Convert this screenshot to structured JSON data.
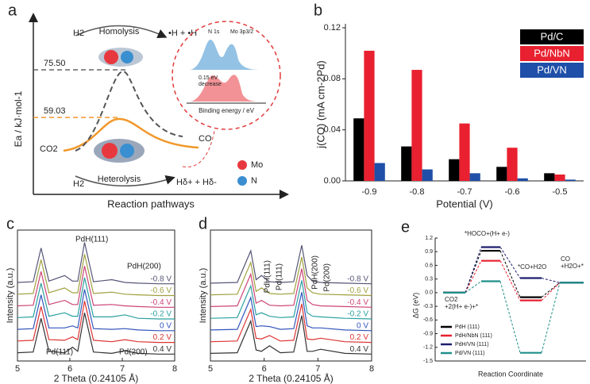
{
  "panel_labels": [
    "a",
    "b",
    "c",
    "d",
    "e"
  ],
  "diagram": {
    "y_label": "Ea / kJ·mol-1",
    "x_label": "Reaction pathways",
    "levels": [
      "75.50",
      "59.03"
    ],
    "homolysis": {
      "reactant": "H2",
      "label": "Homolysis",
      "product": "•H + •H"
    },
    "heterolysis": {
      "reactant": "H2",
      "label": "Heterolysis",
      "product": "Hδ+ + Hδ-"
    },
    "reactant": "CO2",
    "product": "CO",
    "inset": {
      "peaks": [
        "N 1s",
        "Mo 3p3/2"
      ],
      "shift": "0.15 eV",
      "shift_note": "decrease",
      "x_label": "Binding energy / eV"
    },
    "legend": [
      "Mo",
      "N"
    ]
  },
  "chart_data": [
    {
      "type": "bar",
      "x_label": "Potential (V)",
      "y_label": "j(CO)  (mA cm-2Pd)",
      "categories": [
        "-0.9",
        "-0.8",
        "-0.7",
        "-0.6",
        "-0.5"
      ],
      "series": [
        {
          "name": "Pd/C",
          "color": "#000000",
          "values": [
            0.049,
            0.027,
            0.017,
            0.011,
            0.006
          ]
        },
        {
          "name": "Pd/NbN",
          "color": "#e8202f",
          "values": [
            0.102,
            0.087,
            0.045,
            0.026,
            0.005
          ]
        },
        {
          "name": "Pd/VN",
          "color": "#1f4fa8",
          "values": [
            0.014,
            0.009,
            0.006,
            0.002,
            0.001
          ]
        }
      ],
      "ylim": [
        0,
        0.12
      ],
      "yticks": [
        {
          "value": 0,
          "label": "0.00"
        },
        0.04,
        0.08,
        0.12
      ],
      "legend": "upper right"
    },
    {
      "type": "line",
      "x_label": "2 Theta (0.24105 Å)",
      "y_label": "Intensity (a.u.)",
      "annotations": [
        "PdH(111)",
        "PdH(200)",
        "Pd(111)",
        "Pd(200)"
      ],
      "x": [
        5,
        5.3,
        5.45,
        5.6,
        5.9,
        6.05,
        6.15,
        6.28,
        6.45,
        6.8,
        7.05,
        7.3,
        7.7,
        8
      ],
      "series": [
        {
          "name": "0.4 V",
          "color": "#333333",
          "values": [
            0.6,
            0.65,
            3.1,
            0.7,
            0.6,
            1.0,
            0.7,
            3.5,
            0.65,
            0.55,
            0.75,
            0.55,
            0.5,
            0.5
          ]
        },
        {
          "name": "0.2 V",
          "color": "#dd3333",
          "values": [
            1.45,
            1.5,
            3.95,
            1.55,
            1.5,
            1.75,
            1.55,
            4.35,
            1.5,
            1.4,
            1.55,
            1.4,
            1.35,
            1.35
          ]
        },
        {
          "name": "0 V",
          "color": "#3355bb",
          "values": [
            2.3,
            2.35,
            4.8,
            2.4,
            2.4,
            2.55,
            2.4,
            5.2,
            2.35,
            2.3,
            2.35,
            2.25,
            2.2,
            2.2
          ]
        },
        {
          "name": "-0.2 V",
          "color": "#2aa0a0",
          "values": [
            3.15,
            3.2,
            5.65,
            3.25,
            3.5,
            3.25,
            3.25,
            6.05,
            3.2,
            3.2,
            3.35,
            3.1,
            3.05,
            3.05
          ]
        },
        {
          "name": "-0.4 V",
          "color": "#cc4477",
          "values": [
            4.0,
            4.05,
            6.5,
            4.1,
            4.4,
            4.1,
            4.1,
            6.9,
            4.05,
            4.1,
            4.0,
            3.95,
            3.9,
            3.9
          ]
        },
        {
          "name": "-0.6 V",
          "color": "#a0a040",
          "values": [
            4.85,
            4.9,
            7.35,
            4.95,
            5.3,
            4.95,
            4.95,
            7.75,
            4.9,
            5.0,
            4.85,
            4.8,
            4.75,
            4.75
          ]
        },
        {
          "name": "-0.8 V",
          "color": "#555577",
          "values": [
            5.7,
            5.75,
            8.2,
            5.8,
            6.2,
            5.8,
            5.8,
            8.6,
            5.75,
            5.9,
            5.7,
            5.65,
            5.6,
            5.6
          ]
        }
      ],
      "xlim": [
        5,
        8
      ],
      "xticks": [
        5,
        6,
        7,
        8
      ],
      "ylim": [
        0,
        9.5
      ]
    },
    {
      "type": "line",
      "x_label": "2 Theta (0.24105 Å)",
      "y_label": "Intensity (a.u.)",
      "annotations": [
        "PdH(111)",
        "Pd(111)",
        "PdH(200)",
        "Pd(200)"
      ],
      "x": [
        5,
        5.5,
        5.75,
        5.85,
        5.95,
        6.1,
        6.3,
        6.55,
        6.7,
        6.8,
        6.9,
        7.05,
        7.5,
        8
      ],
      "series": [
        {
          "name": "0.4 V",
          "color": "#333333",
          "values": [
            0.55,
            0.6,
            2.9,
            0.8,
            0.7,
            1.1,
            0.6,
            0.65,
            3.3,
            0.7,
            0.7,
            0.85,
            0.55,
            0.5
          ]
        },
        {
          "name": "0.2 V",
          "color": "#dd3333",
          "values": [
            1.4,
            1.45,
            3.75,
            1.65,
            1.6,
            1.85,
            1.45,
            1.5,
            4.15,
            1.6,
            1.55,
            1.65,
            1.4,
            1.35
          ]
        },
        {
          "name": "0 V",
          "color": "#3355bb",
          "values": [
            2.25,
            2.3,
            4.6,
            2.5,
            2.55,
            2.5,
            2.3,
            2.35,
            5.0,
            2.55,
            2.4,
            2.4,
            2.25,
            2.2
          ]
        },
        {
          "name": "-0.2 V",
          "color": "#2aa0a0",
          "values": [
            3.1,
            3.15,
            5.45,
            3.35,
            3.5,
            3.25,
            3.15,
            3.2,
            5.85,
            3.5,
            3.25,
            3.2,
            3.1,
            3.05
          ]
        },
        {
          "name": "-0.4 V",
          "color": "#cc4477",
          "values": [
            3.95,
            4.0,
            6.3,
            4.2,
            4.4,
            4.05,
            4.0,
            4.05,
            6.7,
            4.4,
            4.1,
            4.0,
            3.95,
            3.9
          ]
        },
        {
          "name": "-0.6 V",
          "color": "#a0a040",
          "values": [
            4.8,
            4.85,
            7.15,
            5.05,
            5.3,
            4.9,
            4.85,
            4.9,
            7.55,
            5.3,
            4.95,
            4.85,
            4.8,
            4.75
          ]
        },
        {
          "name": "-0.8 V",
          "color": "#555577",
          "values": [
            5.65,
            5.7,
            8.0,
            5.9,
            6.2,
            5.75,
            5.7,
            5.75,
            8.4,
            6.2,
            5.8,
            5.7,
            5.65,
            5.6
          ]
        }
      ],
      "xlim": [
        5,
        8
      ],
      "xticks": [
        5,
        6,
        7,
        8
      ],
      "ylim": [
        0,
        9.5
      ]
    },
    {
      "type": "energy",
      "x_label": "Reaction Coordinate",
      "y_label": "ΔG (eV)",
      "categories": [
        "CO2\n+2(H+ e-)+*",
        "*HOCO+(H+ e-)",
        "*CO+H2O",
        "CO\n+H2O+*"
      ],
      "series": [
        {
          "name": "PdH (111)",
          "color": "#000000",
          "values": [
            0,
            0.92,
            -0.1,
            0.22
          ]
        },
        {
          "name": "PdH/NbN (111)",
          "color": "#e8202f",
          "values": [
            0,
            0.7,
            -0.17,
            0.22
          ]
        },
        {
          "name": "PdH/VN (111)",
          "color": "#1d1d6e",
          "values": [
            0,
            1.0,
            0.32,
            0.22
          ]
        },
        {
          "name": "Pd/VN (111)",
          "color": "#1f8f8a",
          "values": [
            0,
            0.25,
            -1.32,
            0.22
          ]
        }
      ],
      "ylim": [
        -1.5,
        1.2
      ],
      "yticks": [
        -1.5,
        -1.2,
        -0.9,
        -0.6,
        -0.3,
        {
          "value": 0,
          "label": "0.0"
        },
        0.3,
        0.6,
        0.9,
        1.2
      ],
      "legend": "lower left"
    }
  ]
}
